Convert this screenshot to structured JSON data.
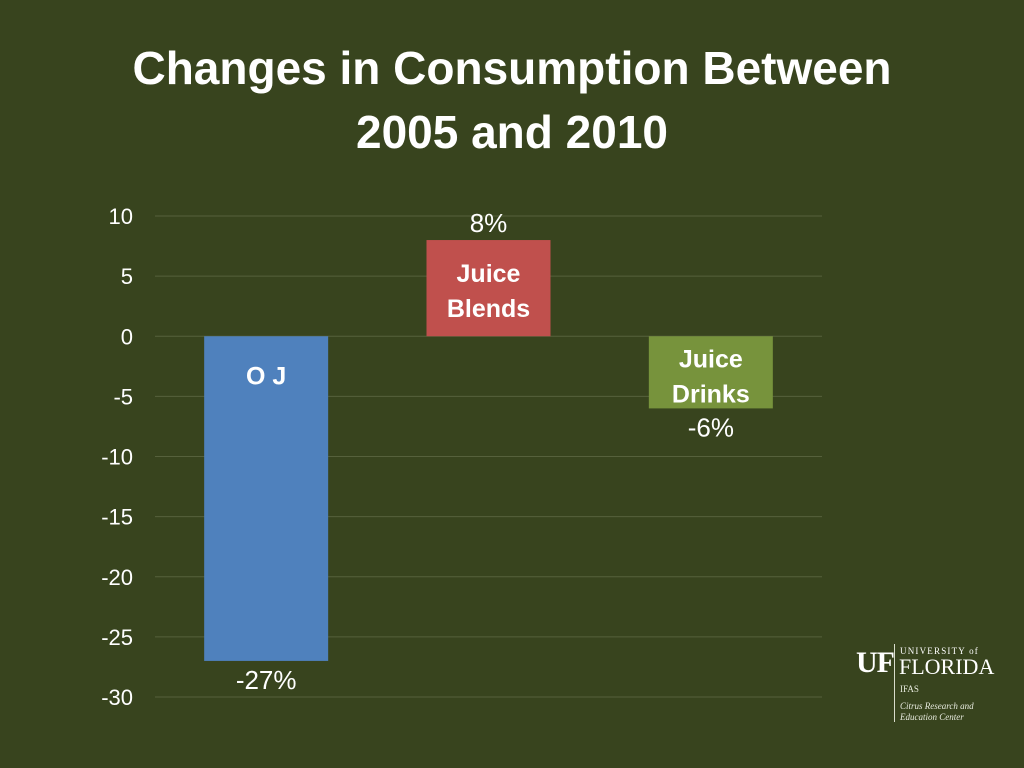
{
  "slide": {
    "title_line1": "Changes in Consumption Between",
    "title_line2": "2005 and 2010"
  },
  "chart_data": {
    "type": "bar",
    "title": "",
    "xlabel": "",
    "ylabel": "",
    "categories": [
      "O J",
      "Juice Blends",
      "Juice Drinks"
    ],
    "category_label_lines": [
      [
        "O J"
      ],
      [
        "Juice",
        "Blends"
      ],
      [
        "Juice",
        "Drinks"
      ]
    ],
    "values": [
      -27,
      8,
      -6
    ],
    "data_labels": [
      "-27%",
      "8%",
      "-6%"
    ],
    "colors": [
      "#4f81bd",
      "#c0504d",
      "#77933c"
    ],
    "ylim": [
      -30,
      10
    ],
    "yticks": [
      10,
      5,
      0,
      -5,
      -10,
      -15,
      -20,
      -25,
      -30
    ],
    "grid": true,
    "legend": "none"
  },
  "logo": {
    "mark": "UF",
    "university": "UNIVERSITY of",
    "name": "FLORIDA",
    "unit": "IFAS",
    "center_line1": "Citrus Research and",
    "center_line2": "Education Center"
  }
}
